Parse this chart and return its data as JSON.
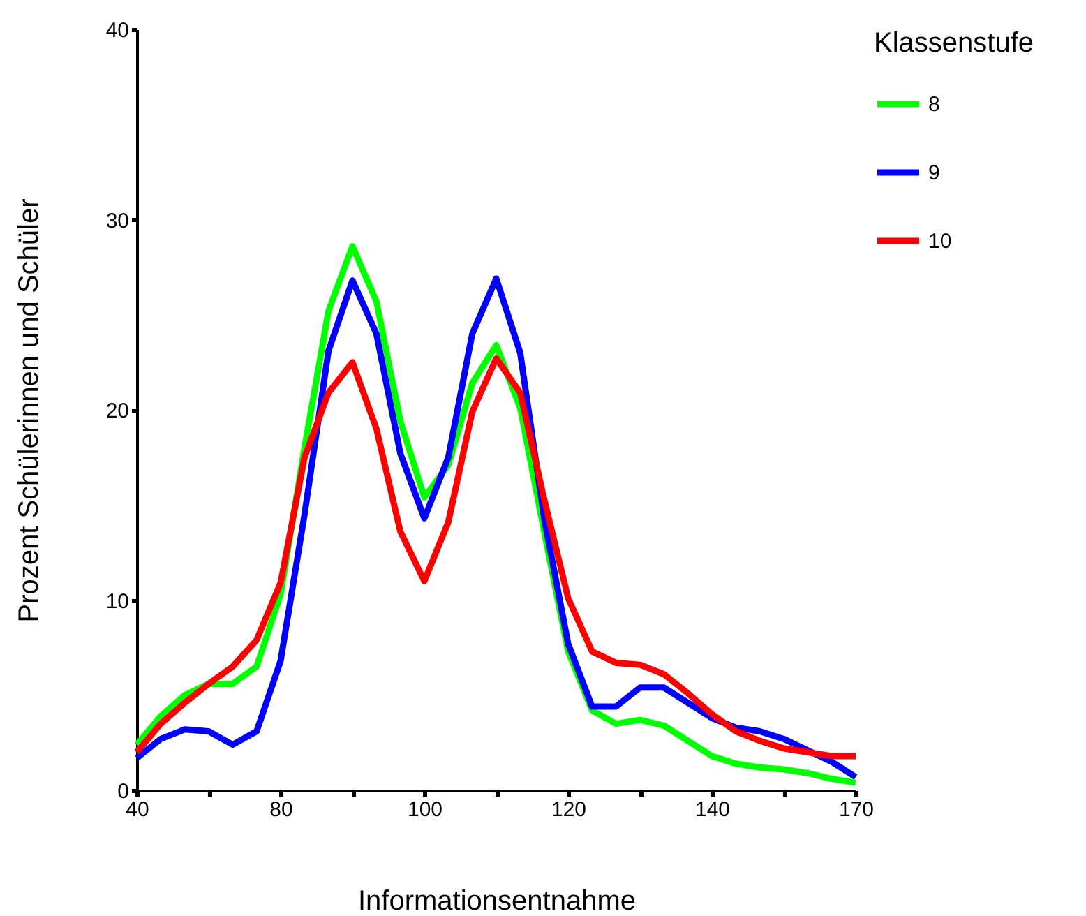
{
  "chart_data": {
    "type": "line",
    "xlabel": "Informationsentnahme",
    "ylabel": "Prozent Schülerinnen und Schüler",
    "legend_title": "Klassenstufe",
    "legend": "right",
    "grid": false,
    "marker": "none",
    "line_style": "solid",
    "ylim": [
      0,
      40
    ],
    "yticks": [
      0,
      10,
      20,
      30,
      40
    ],
    "categories": [
      "40",
      null,
      null,
      null,
      null,
      null,
      "80",
      null,
      null,
      null,
      null,
      null,
      "100",
      null,
      null,
      null,
      null,
      null,
      "120",
      null,
      null,
      null,
      null,
      null,
      "140",
      null,
      null,
      null,
      null,
      null,
      "170"
    ],
    "series": [
      {
        "name": "8",
        "color": "#00ff00",
        "values": [
          2.4,
          3.9,
          5.0,
          5.6,
          5.6,
          6.5,
          10.3,
          18.0,
          25.2,
          28.6,
          25.7,
          19.4,
          15.4,
          17.1,
          21.4,
          23.4,
          20.1,
          13.6,
          7.3,
          4.2,
          3.5,
          3.7,
          3.4,
          2.6,
          1.8,
          1.4,
          1.2,
          1.1,
          0.9,
          0.6,
          0.4
        ]
      },
      {
        "name": "9",
        "color": "#0000ff",
        "values": [
          1.7,
          2.7,
          3.2,
          3.1,
          2.4,
          3.1,
          6.8,
          14.5,
          23.1,
          26.8,
          24.0,
          17.7,
          14.3,
          17.5,
          24.0,
          26.9,
          23.0,
          14.3,
          7.7,
          4.4,
          4.4,
          5.4,
          5.4,
          4.6,
          3.8,
          3.3,
          3.1,
          2.7,
          2.1,
          1.5,
          0.7
        ]
      },
      {
        "name": "10",
        "color": "#ff0000",
        "values": [
          2.0,
          3.5,
          4.6,
          5.6,
          6.5,
          7.9,
          10.9,
          17.5,
          20.9,
          22.5,
          19.0,
          13.6,
          11.0,
          14.1,
          19.9,
          22.7,
          20.9,
          15.3,
          10.1,
          7.3,
          6.7,
          6.6,
          6.1,
          5.1,
          4.0,
          3.1,
          2.6,
          2.2,
          2.0,
          1.8,
          1.8
        ]
      }
    ]
  }
}
